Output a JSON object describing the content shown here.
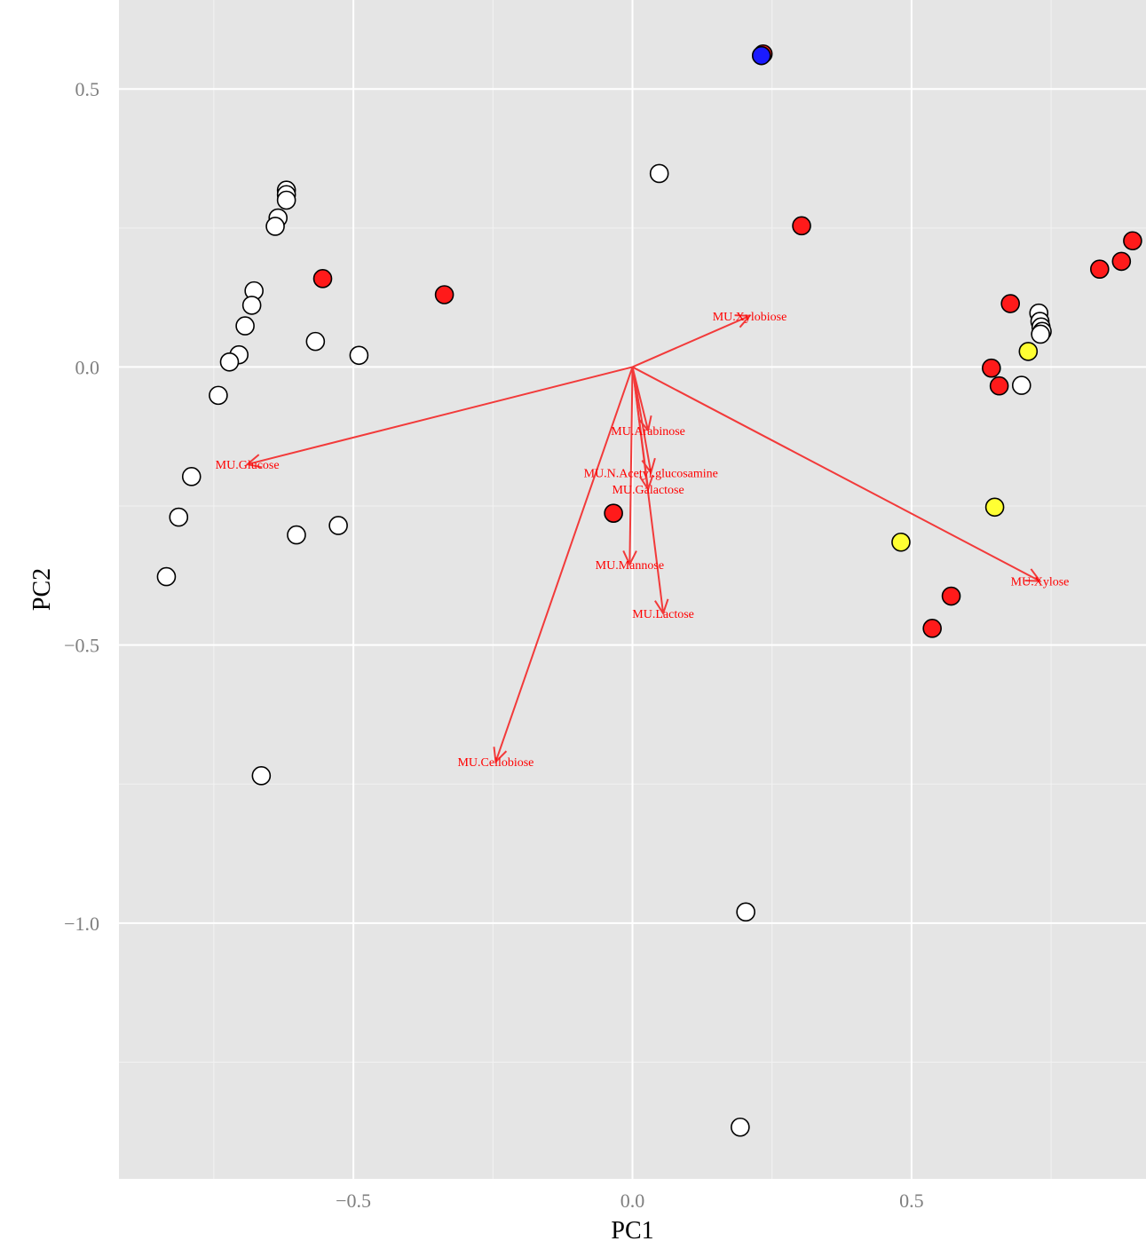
{
  "chart_data": {
    "type": "scatter",
    "title": "",
    "xlabel": "PC1",
    "ylabel": "PC2",
    "xlim": [
      -0.92,
      0.92
    ],
    "ylim": [
      -1.46,
      0.66
    ],
    "x_ticks": [
      -0.5,
      0.0,
      0.5
    ],
    "x_tick_labels": [
      "−0.5",
      "0.0",
      "0.5"
    ],
    "y_ticks": [
      0.5,
      0.0,
      -0.5,
      -1.0
    ],
    "y_tick_labels": [
      "0.5",
      "0.0",
      "−0.5",
      "−1.0"
    ],
    "grid": true,
    "legend": "none",
    "colors": {
      "panel": "#e5e5e5",
      "grid_major": "#ffffff",
      "grid_minor": "#f2f2f2",
      "arrow": "#f23a3a",
      "label": "#ff0000",
      "point_outline": "#000000"
    },
    "points": [
      {
        "x": -0.62,
        "y": 0.318,
        "color": "#ffffff"
      },
      {
        "x": -0.62,
        "y": 0.31,
        "color": "#ffffff"
      },
      {
        "x": -0.62,
        "y": 0.3,
        "color": "#ffffff"
      },
      {
        "x": -0.635,
        "y": 0.268,
        "color": "#ffffff"
      },
      {
        "x": -0.64,
        "y": 0.253,
        "color": "#ffffff"
      },
      {
        "x": -0.678,
        "y": 0.137,
        "color": "#ffffff"
      },
      {
        "x": -0.682,
        "y": 0.111,
        "color": "#ffffff"
      },
      {
        "x": -0.694,
        "y": 0.074,
        "color": "#ffffff"
      },
      {
        "x": -0.705,
        "y": 0.022,
        "color": "#ffffff"
      },
      {
        "x": -0.722,
        "y": 0.009,
        "color": "#ffffff"
      },
      {
        "x": -0.742,
        "y": -0.051,
        "color": "#ffffff"
      },
      {
        "x": -0.79,
        "y": -0.197,
        "color": "#ffffff"
      },
      {
        "x": -0.813,
        "y": -0.27,
        "color": "#ffffff"
      },
      {
        "x": -0.835,
        "y": -0.377,
        "color": "#ffffff"
      },
      {
        "x": -0.602,
        "y": -0.302,
        "color": "#ffffff"
      },
      {
        "x": -0.527,
        "y": -0.285,
        "color": "#ffffff"
      },
      {
        "x": -0.568,
        "y": 0.046,
        "color": "#ffffff"
      },
      {
        "x": -0.49,
        "y": 0.021,
        "color": "#ffffff"
      },
      {
        "x": -0.665,
        "y": -0.735,
        "color": "#ffffff"
      },
      {
        "x": 0.048,
        "y": 0.348,
        "color": "#ffffff"
      },
      {
        "x": 0.203,
        "y": -0.98,
        "color": "#ffffff"
      },
      {
        "x": 0.193,
        "y": -1.367,
        "color": "#ffffff"
      },
      {
        "x": 0.697,
        "y": -0.033,
        "color": "#ffffff"
      },
      {
        "x": 0.728,
        "y": 0.097,
        "color": "#ffffff"
      },
      {
        "x": 0.73,
        "y": 0.082,
        "color": "#ffffff"
      },
      {
        "x": 0.732,
        "y": 0.072,
        "color": "#ffffff"
      },
      {
        "x": 0.734,
        "y": 0.064,
        "color": "#ffffff"
      },
      {
        "x": 0.731,
        "y": 0.059,
        "color": "#ffffff"
      },
      {
        "x": -0.555,
        "y": 0.159,
        "color": "#ff1a1a"
      },
      {
        "x": -0.337,
        "y": 0.13,
        "color": "#ff1a1a"
      },
      {
        "x": 0.303,
        "y": 0.254,
        "color": "#ff1a1a"
      },
      {
        "x": 0.234,
        "y": 0.563,
        "color": "#ff1a1a"
      },
      {
        "x": -0.034,
        "y": -0.263,
        "color": "#ff1a1a"
      },
      {
        "x": 0.677,
        "y": 0.114,
        "color": "#ff1a1a"
      },
      {
        "x": 0.643,
        "y": -0.002,
        "color": "#ff1a1a"
      },
      {
        "x": 0.657,
        "y": -0.034,
        "color": "#ff1a1a"
      },
      {
        "x": 0.837,
        "y": 0.176,
        "color": "#ff1a1a"
      },
      {
        "x": 0.876,
        "y": 0.19,
        "color": "#ff1a1a"
      },
      {
        "x": 0.896,
        "y": 0.227,
        "color": "#ff1a1a"
      },
      {
        "x": 0.571,
        "y": -0.412,
        "color": "#ff1a1a"
      },
      {
        "x": 0.537,
        "y": -0.47,
        "color": "#ff1a1a"
      },
      {
        "x": 0.709,
        "y": 0.028,
        "color": "#ffff33"
      },
      {
        "x": 0.649,
        "y": -0.252,
        "color": "#ffff33"
      },
      {
        "x": 0.481,
        "y": -0.315,
        "color": "#ffff33"
      },
      {
        "x": 0.231,
        "y": 0.56,
        "color": "#1a1aff"
      }
    ],
    "loadings": [
      {
        "name": "MU.Xylobiose",
        "x": 0.21,
        "y": 0.092
      },
      {
        "name": "MU.Glucose",
        "x": -0.69,
        "y": -0.175
      },
      {
        "name": "MU.Arabinose",
        "x": 0.028,
        "y": -0.114
      },
      {
        "name": "MU.N.Acetyl.glucosamine",
        "x": 0.033,
        "y": -0.19
      },
      {
        "name": "MU.Galactose",
        "x": 0.028,
        "y": -0.22
      },
      {
        "name": "MU.Mannose",
        "x": -0.005,
        "y": -0.355
      },
      {
        "name": "MU.Lactose",
        "x": 0.055,
        "y": -0.443
      },
      {
        "name": "MU.Xylose",
        "x": 0.73,
        "y": -0.385
      },
      {
        "name": "MU.Cellobiose",
        "x": -0.245,
        "y": -0.71
      }
    ]
  }
}
